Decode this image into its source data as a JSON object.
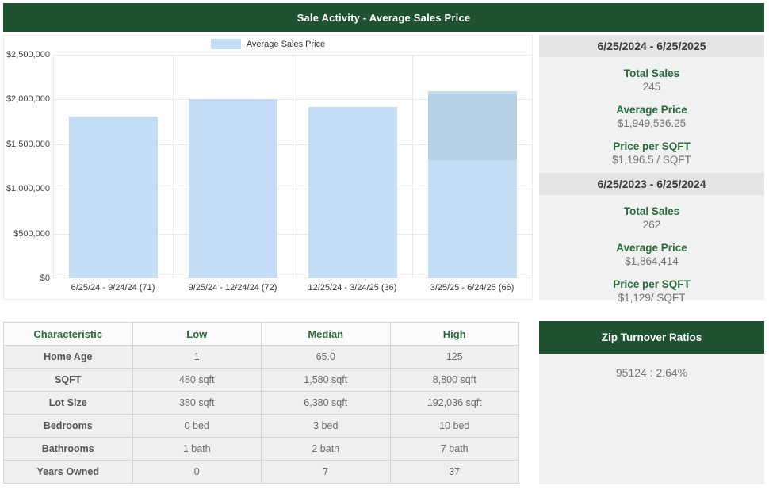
{
  "title_bar": {
    "title": "Sale Activity - Average Sales Price"
  },
  "chart_data": {
    "type": "bar",
    "title": "Sale Activity - Average Sales Price",
    "legend": [
      {
        "label": "Average Sales Price",
        "color": "#c4ddf4"
      }
    ],
    "legend_position": "top",
    "categories": [
      "6/25/24 - 9/24/24 (71)",
      "9/25/24 - 12/24/24 (72)",
      "12/25/24 - 3/24/25 (36)",
      "3/25/25 - 6/24/25 (66)"
    ],
    "values": [
      1800000,
      1995000,
      1910000,
      2080000
    ],
    "ylim": [
      0,
      2500000
    ],
    "yticks": [
      {
        "label": "$2,500,000",
        "value": 2500000
      },
      {
        "label": "$2,000,000",
        "value": 2000000
      },
      {
        "label": "$1,500,000",
        "value": 1500000
      },
      {
        "label": "$1,000,000",
        "value": 1000000
      },
      {
        "label": "$500,000",
        "value": 500000
      },
      {
        "label": "$0",
        "value": 0
      }
    ],
    "grid": true,
    "bar_color": "#c4ddf4",
    "faded_tooltip_on_bar_index": 3
  },
  "stats_panel": {
    "sections": [
      {
        "period": "6/25/2024 - 6/25/2025",
        "stats": [
          {
            "label": "Total Sales",
            "value": "245"
          },
          {
            "label": "Average Price",
            "value": "$1,949,536.25"
          },
          {
            "label": "Price per SQFT",
            "value": "$1,196.5 / SQFT"
          }
        ]
      },
      {
        "period": "6/25/2023 - 6/25/2024",
        "stats": [
          {
            "label": "Total Sales",
            "value": "262"
          },
          {
            "label": "Average Price",
            "value": "$1,864,414"
          },
          {
            "label": "Price per SQFT",
            "value": "$1,129/ SQFT"
          }
        ]
      }
    ]
  },
  "characteristics_table": {
    "headers": [
      "Characteristic",
      "Low",
      "Median",
      "High"
    ],
    "rows": [
      [
        "Home Age",
        "1",
        "65.0",
        "125"
      ],
      [
        "SQFT",
        "480 sqft",
        "1,580 sqft",
        "8,800 sqft"
      ],
      [
        "Lot Size",
        "380 sqft",
        "6,380 sqft",
        "192,036 sqft"
      ],
      [
        "Bedrooms",
        "0 bed",
        "3 bed",
        "10 bed"
      ],
      [
        "Bathrooms",
        "1 bath",
        "2 bath",
        "7 bath"
      ],
      [
        "Years Owned",
        "0",
        "7",
        "37"
      ]
    ]
  },
  "zip_panel": {
    "title": "Zip Turnover Ratios",
    "entries": [
      "95124 : 2.64%"
    ]
  },
  "colors": {
    "header_green": "#1e5231",
    "label_green": "#2d6a3e",
    "bar_blue": "#c4ddf4"
  }
}
